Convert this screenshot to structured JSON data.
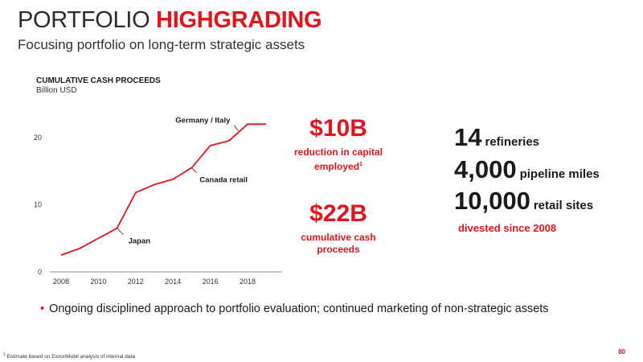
{
  "header": {
    "title_plain": "PORTFOLIO",
    "title_highlight": "HIGHGRADING",
    "subtitle": "Focusing portfolio on long-term strategic assets"
  },
  "colors": {
    "accent": "#e2141c",
    "text": "#1a1a1a",
    "axis": "#888888"
  },
  "chart_data": {
    "type": "line",
    "title": "CUMULATIVE CASH PROCEEDS",
    "ylabel": "Billion USD",
    "x": [
      2008,
      2009,
      2010,
      2011,
      2012,
      2013,
      2014,
      2015,
      2016,
      2017,
      2018,
      2019
    ],
    "series": [
      {
        "values": [
          2.5,
          3.5,
          5.0,
          6.5,
          11.8,
          13.0,
          13.8,
          15.5,
          18.8,
          19.5,
          22.0,
          22.0
        ]
      }
    ],
    "xticks": [
      "2008",
      "2010",
      "2012",
      "2014",
      "2016",
      "2018"
    ],
    "yticks": [
      "0",
      "10",
      "20"
    ],
    "ylim": [
      0,
      24
    ],
    "xlim": [
      2008,
      2019.5
    ],
    "grid": false,
    "annotations": [
      {
        "text": "Japan",
        "x": 2011,
        "y": 6.5
      },
      {
        "text": "Canada retail",
        "x": 2015,
        "y": 15.5
      },
      {
        "text": "Germany / Italy",
        "x": 2017.5,
        "y": 21.0
      }
    ]
  },
  "stats": {
    "capital": {
      "value": "$10B",
      "caption_line1": "reduction in capital",
      "caption_line2": "employed",
      "footnote_mark": "1"
    },
    "cash": {
      "value": "$22B",
      "caption_line1": "cumulative cash",
      "caption_line2": "proceeds"
    }
  },
  "divestitures": {
    "items": [
      {
        "number": "14",
        "label": "refineries"
      },
      {
        "number": "4,000",
        "label": "pipeline miles"
      },
      {
        "number": "10,000",
        "label": "retail sites"
      }
    ],
    "caption": "divested since 2008"
  },
  "bullet": "Ongoing disciplined approach to portfolio evaluation; continued marketing of non-strategic assets",
  "footnote": {
    "mark": "1",
    "text": "Estimate based on ExxonMobil analysis of internal data"
  },
  "page_number": "80"
}
